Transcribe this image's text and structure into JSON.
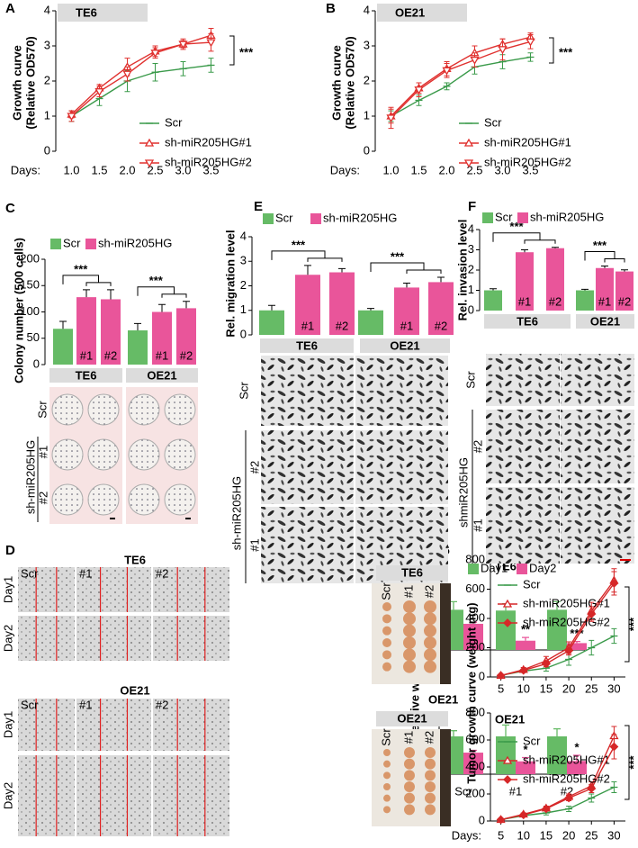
{
  "chart_data": [
    {
      "type": "line",
      "panel": "A",
      "title": "TE6",
      "y_label": [
        "Growth curve",
        "(Relative OD570)"
      ],
      "x_label": "Days:",
      "x": [
        1,
        1.5,
        2,
        2.5,
        3,
        3.5
      ],
      "xlim": [
        0.75,
        3.75
      ],
      "xticks": [
        {
          "value": 1,
          "label": "1.0"
        },
        1.5,
        {
          "value": 2,
          "label": "2.0"
        },
        2.5,
        {
          "value": 3,
          "label": "3.0"
        },
        3.5
      ],
      "ylim": [
        0,
        4
      ],
      "yticks": [
        0,
        1,
        2,
        3,
        4
      ],
      "legend": "lower right",
      "annotation": "***",
      "series": [
        {
          "name": "Scr",
          "color": "#3a9a4a",
          "marker": "dash",
          "values": [
            1.0,
            1.5,
            2.0,
            2.25,
            2.35,
            2.45
          ],
          "errors": [
            0.15,
            0.2,
            0.3,
            0.25,
            0.2,
            0.2
          ]
        },
        {
          "name": "sh-miR205HG#1",
          "color": "#e0312f",
          "marker": "triangle-up",
          "values": [
            1.05,
            1.8,
            2.4,
            2.85,
            3.05,
            3.3
          ],
          "errors": [
            0.1,
            0.1,
            0.25,
            0.15,
            0.15,
            0.2
          ]
        },
        {
          "name": "sh-miR205HG#2",
          "color": "#e0312f",
          "marker": "triangle-down",
          "values": [
            1.0,
            1.7,
            2.2,
            2.8,
            3.05,
            3.1
          ],
          "errors": [
            0.15,
            0.15,
            0.2,
            0.15,
            0.1,
            0.25
          ]
        }
      ]
    },
    {
      "type": "line",
      "panel": "B",
      "title": "OE21",
      "y_label": [
        "Growth curve",
        "(Relative OD570)"
      ],
      "x_label": "Days:",
      "x": [
        1,
        1.5,
        2,
        2.5,
        3,
        3.5
      ],
      "xlim": [
        0.75,
        3.75
      ],
      "xticks": [
        {
          "value": 1,
          "label": "1.0"
        },
        1.5,
        {
          "value": 2,
          "label": "2.0"
        },
        2.5,
        {
          "value": 3,
          "label": "3.0"
        },
        3.5
      ],
      "ylim": [
        0,
        4
      ],
      "yticks": [
        0,
        1,
        2,
        3,
        4
      ],
      "legend": "lower right",
      "annotation": "***",
      "series": [
        {
          "name": "Scr",
          "color": "#3a9a4a",
          "marker": "dash",
          "values": [
            1.0,
            1.45,
            1.85,
            2.4,
            2.55,
            2.68
          ],
          "errors": [
            0.15,
            0.15,
            0.1,
            0.2,
            0.2,
            0.12
          ]
        },
        {
          "name": "sh-miR205HG#1",
          "color": "#e0312f",
          "marker": "triangle-up",
          "values": [
            1.0,
            1.8,
            2.35,
            2.8,
            3.05,
            3.25
          ],
          "errors": [
            0.2,
            0.15,
            0.2,
            0.2,
            0.15,
            0.12
          ]
        },
        {
          "name": "sh-miR205HG#2",
          "color": "#e0312f",
          "marker": "triangle-down",
          "values": [
            0.95,
            1.75,
            2.3,
            2.6,
            2.9,
            3.12
          ],
          "errors": [
            0.3,
            0.2,
            0.2,
            0.2,
            0.3,
            0.2
          ]
        }
      ]
    },
    {
      "type": "grouped_bar",
      "panel": "C",
      "y_label": "Colony number (500 cells)",
      "groups": [
        "TE6",
        "OE21"
      ],
      "ylim": [
        0,
        200
      ],
      "yticks": [
        0,
        50,
        100,
        150,
        200
      ],
      "annotations": [
        "***",
        "***"
      ],
      "series": [
        {
          "name": "Scr",
          "color": "#66bb66",
          "values": [
            68,
            65
          ],
          "errors": [
            14,
            13
          ]
        },
        {
          "name": "sh-miR205HG",
          "color": "#e9559a",
          "bars": [
            {
              "label": "#1",
              "values": [
                128,
                100
              ],
              "errors": [
                14,
                14
              ]
            },
            {
              "label": "#2",
              "values": [
                124,
                107
              ],
              "errors": [
                18,
                13
              ]
            }
          ]
        }
      ],
      "images": {
        "rows": [
          "Scr",
          "sh-miR205HG"
        ],
        "subrows": [
          "#1",
          "#2"
        ]
      }
    },
    {
      "type": "grouped_bar",
      "panel": "E",
      "y_label": "Rel. migration level",
      "groups": [
        "TE6",
        "OE21"
      ],
      "ylim": [
        0,
        4
      ],
      "yticks": [
        0,
        1,
        2,
        3,
        4
      ],
      "annotations": [
        "***",
        "***"
      ],
      "series": [
        {
          "name": "Scr",
          "color": "#66bb66",
          "values": [
            1,
            1
          ],
          "errors": [
            0.2,
            0.08
          ]
        },
        {
          "name": "sh-miR205HG",
          "color": "#e9559a",
          "bars": [
            {
              "label": "#1",
              "values": [
                2.45,
                1.93
              ],
              "errors": [
                0.38,
                0.18
              ]
            },
            {
              "label": "#2",
              "values": [
                2.55,
                2.15
              ],
              "errors": [
                0.15,
                0.2
              ]
            }
          ]
        }
      ],
      "images": {
        "rows": [
          "Scr",
          "sh-miR205HG"
        ],
        "subrows": [
          "#2",
          "#1"
        ]
      }
    },
    {
      "type": "grouped_bar",
      "panel": "F",
      "y_label": "Rel. invasion level",
      "groups": [
        "TE6",
        "OE21"
      ],
      "ylim": [
        0,
        4
      ],
      "yticks": [
        0,
        1,
        2,
        3,
        4
      ],
      "annotations": [
        "***",
        "***"
      ],
      "series": [
        {
          "name": "Scr",
          "color": "#66bb66",
          "values": [
            1,
            1
          ],
          "errors": [
            0.08,
            0.05
          ]
        },
        {
          "name": "sh-miR205HG",
          "color": "#e9559a",
          "bars": [
            {
              "label": "#1",
              "values": [
                2.88,
                2.1
              ],
              "errors": [
                0.12,
                0.1
              ]
            },
            {
              "label": "#2",
              "values": [
                3.08,
                1.93
              ],
              "errors": [
                0.04,
                0.08
              ]
            }
          ]
        }
      ],
      "images": {
        "rows": [
          "Scr",
          "shmiR205HG"
        ],
        "subrows": [
          "#2",
          "#1"
        ]
      }
    },
    {
      "type": "bar",
      "panel": "D",
      "title": "TE6",
      "y_label": "Relative would wide",
      "ylim": [
        0,
        1.5
      ],
      "yticks": [
        {
          "value": 0,
          "label": "0.0"
        },
        0.5,
        {
          "value": 1,
          "label": "1.0"
        },
        1.5
      ],
      "series": [
        {
          "name": "Day1",
          "color": "#66bb66",
          "values": [
            1,
            0.98,
            1
          ],
          "errors": [
            0.2,
            0.17,
            0.2
          ]
        },
        {
          "name": "Day2",
          "color": "#e9559a",
          "values": [
            0.65,
            0.23,
            0.17
          ],
          "errors": [
            0.04,
            0.08,
            0.04
          ],
          "significance": [
            null,
            "**",
            "***"
          ]
        }
      ],
      "images": {
        "titles": [
          "TE6",
          "OE21"
        ],
        "columns": [
          "Scr",
          "#1",
          "#2"
        ],
        "rows": [
          "Day1",
          "Day2"
        ]
      }
    },
    {
      "type": "bar",
      "title": "OE21",
      "categories": [
        "Scr",
        "#1",
        "#2"
      ],
      "ylim": [
        0,
        1.5
      ],
      "yticks": [
        {
          "value": 0,
          "label": "0.0"
        },
        0.5,
        {
          "value": 1,
          "label": "1.0"
        },
        1.5
      ],
      "series": [
        {
          "color": "#66bb66",
          "values": [
            1,
            1,
            1
          ],
          "errors": [
            0.15,
            0.3,
            0.2
          ]
        },
        {
          "color": "#e9559a",
          "values": [
            0.57,
            0.34,
            0.35
          ],
          "errors": [
            0.06,
            0.1,
            0.15
          ],
          "significance": [
            null,
            "*",
            "*"
          ]
        }
      ]
    },
    {
      "type": "line",
      "panel": "G",
      "title": "TE6",
      "y_label": "Tumor growth curve (weight mg)",
      "x": [
        5,
        10,
        15,
        20,
        25,
        30
      ],
      "xlim": [
        2.5,
        32.5
      ],
      "xticks": [
        5,
        10,
        15,
        20,
        25,
        30
      ],
      "ylim": [
        0,
        800
      ],
      "yticks": [
        0,
        200,
        400,
        600,
        800
      ],
      "legend": "upper left",
      "annotation": "***",
      "series": [
        {
          "name": "Scr",
          "color": "#3a9a4a",
          "marker": "dash",
          "values": [
            10,
            40,
            60,
            120,
            200,
            280
          ],
          "errors": [
            5,
            10,
            20,
            40,
            50,
            50
          ]
        },
        {
          "name": "sh-miR205HG#1",
          "color": "#d62728",
          "marker": "triangle-up",
          "values": [
            10,
            50,
            110,
            200,
            450,
            660
          ],
          "errors": [
            5,
            15,
            30,
            40,
            60,
            80
          ]
        },
        {
          "name": "sh-miR205HG#2",
          "color": "#d62728",
          "marker": "diamond",
          "values": [
            10,
            45,
            90,
            180,
            430,
            640
          ],
          "errors": [
            5,
            10,
            20,
            30,
            50,
            80
          ]
        }
      ],
      "images": {
        "titles": [
          "TE6",
          "OE21"
        ],
        "columns": [
          "Scr",
          "#1",
          "#2"
        ]
      }
    },
    {
      "type": "line",
      "title": "OE21",
      "x_label": "Days:",
      "x": [
        5,
        10,
        15,
        20,
        25,
        30
      ],
      "xlim": [
        2.5,
        32.5
      ],
      "xticks": [
        5,
        10,
        15,
        20,
        25,
        30
      ],
      "ylim": [
        0,
        800
      ],
      "yticks": [
        0,
        200,
        400,
        600,
        800
      ],
      "legend": "upper left",
      "annotation": "***",
      "series": [
        {
          "name": "Scr",
          "color": "#3a9a4a",
          "marker": "dash",
          "values": [
            10,
            40,
            60,
            90,
            170,
            250
          ],
          "errors": [
            5,
            10,
            15,
            20,
            30,
            40
          ]
        },
        {
          "name": "sh-miR205HG#1",
          "color": "#d62728",
          "marker": "triangle-up",
          "values": [
            10,
            50,
            95,
            180,
            260,
            630
          ],
          "errors": [
            5,
            10,
            15,
            20,
            30,
            70
          ]
        },
        {
          "name": "sh-miR205HG#2",
          "color": "#d62728",
          "marker": "diamond",
          "values": [
            10,
            45,
            90,
            170,
            240,
            550
          ],
          "errors": [
            5,
            10,
            15,
            20,
            30,
            90
          ]
        }
      ]
    }
  ]
}
